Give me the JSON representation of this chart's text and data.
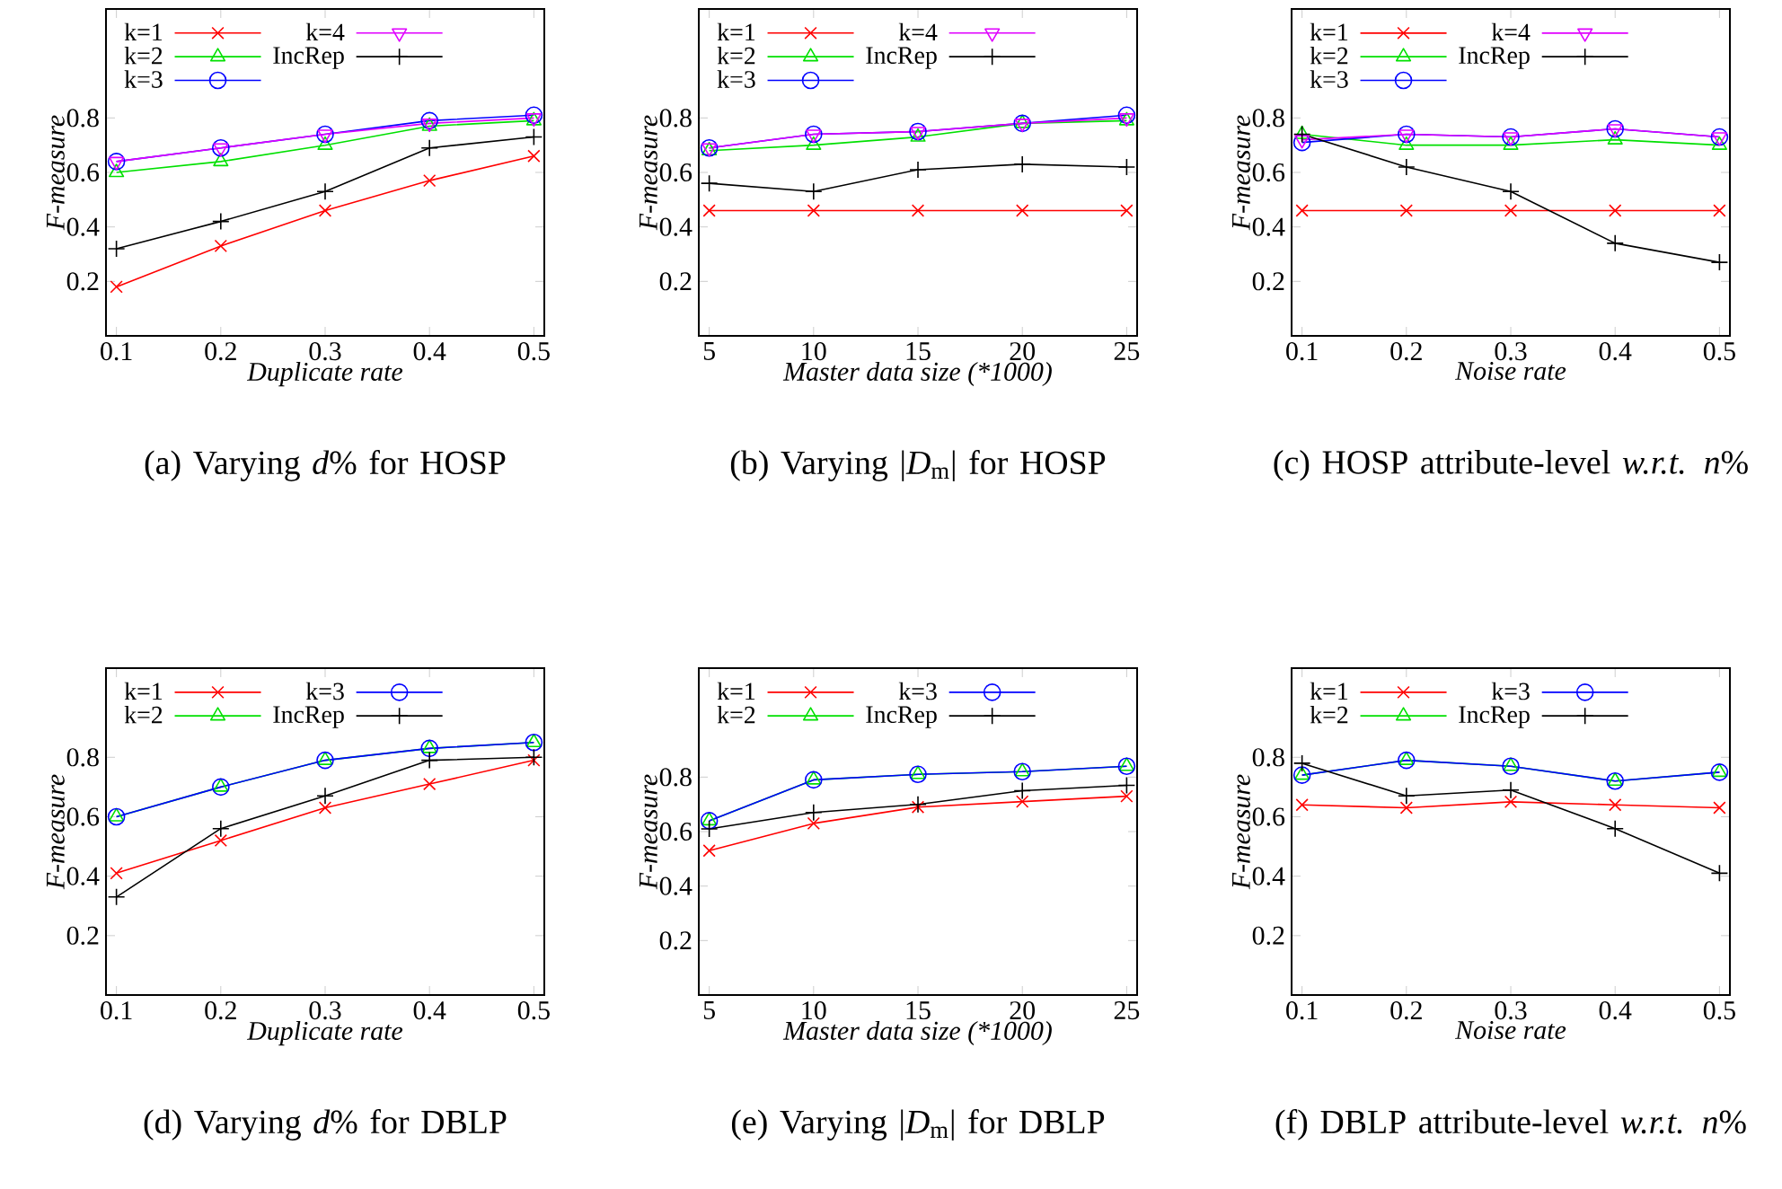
{
  "chart_data": [
    {
      "type": "line",
      "title": "(a) Varying *d*% for HOSP",
      "xlabel": "Duplicate rate",
      "ylabel": "F-measure",
      "x": [
        0.1,
        0.2,
        0.3,
        0.4,
        0.5
      ],
      "xlim": [
        0.09,
        0.51
      ],
      "xticks": [
        0.1,
        0.2,
        0.3,
        0.4,
        0.5
      ],
      "ylim": [
        0,
        1.2
      ],
      "yticks": [
        0.2,
        0.4,
        0.6,
        0.8
      ],
      "legend": "top left",
      "series": [
        {
          "name": "k=1",
          "color": "#ff0000",
          "marker": "cross",
          "values": [
            0.18,
            0.33,
            0.46,
            0.57,
            0.66
          ]
        },
        {
          "name": "k=2",
          "color": "#00e000",
          "marker": "triangle",
          "values": [
            0.6,
            0.64,
            0.7,
            0.77,
            0.79
          ]
        },
        {
          "name": "k=3",
          "color": "#0000ff",
          "marker": "circle",
          "values": [
            0.64,
            0.69,
            0.74,
            0.79,
            0.81
          ]
        },
        {
          "name": "k=4",
          "color": "#e000ff",
          "marker": "triangle_down",
          "values": [
            0.64,
            0.69,
            0.74,
            0.78,
            0.8
          ]
        },
        {
          "name": "IncRep",
          "color": "#000000",
          "marker": "plus",
          "values": [
            0.32,
            0.42,
            0.53,
            0.69,
            0.73
          ]
        }
      ]
    },
    {
      "type": "line",
      "title": "(b) Varying |*D*$_{m}$| for HOSP",
      "xlabel": "Master data size (*1000)",
      "ylabel": "F-measure",
      "x": [
        5,
        10,
        15,
        20,
        25
      ],
      "xlim": [
        4.5,
        25.5
      ],
      "xticks": [
        5,
        10,
        15,
        20,
        25
      ],
      "ylim": [
        0,
        1.2
      ],
      "yticks": [
        0.2,
        0.4,
        0.6,
        0.8
      ],
      "legend": "top left",
      "series": [
        {
          "name": "k=1",
          "color": "#ff0000",
          "marker": "cross",
          "values": [
            0.46,
            0.46,
            0.46,
            0.46,
            0.46
          ]
        },
        {
          "name": "k=2",
          "color": "#00e000",
          "marker": "triangle",
          "values": [
            0.68,
            0.7,
            0.73,
            0.78,
            0.79
          ]
        },
        {
          "name": "k=3",
          "color": "#0000ff",
          "marker": "circle",
          "values": [
            0.69,
            0.74,
            0.75,
            0.78,
            0.81
          ]
        },
        {
          "name": "k=4",
          "color": "#e000ff",
          "marker": "triangle_down",
          "values": [
            0.69,
            0.74,
            0.75,
            0.78,
            0.8
          ]
        },
        {
          "name": "IncRep",
          "color": "#000000",
          "marker": "plus",
          "values": [
            0.56,
            0.53,
            0.61,
            0.63,
            0.62
          ]
        }
      ]
    },
    {
      "type": "line",
      "title": "(c) HOSP attribute-level *w.r.t.* *n*%",
      "xlabel": "Noise rate",
      "ylabel": "F-measure",
      "x": [
        0.1,
        0.2,
        0.3,
        0.4,
        0.5
      ],
      "xlim": [
        0.09,
        0.51
      ],
      "xticks": [
        0.1,
        0.2,
        0.3,
        0.4,
        0.5
      ],
      "ylim": [
        0,
        1.2
      ],
      "yticks": [
        0.2,
        0.4,
        0.6,
        0.8
      ],
      "legend": "top left",
      "series": [
        {
          "name": "k=1",
          "color": "#ff0000",
          "marker": "cross",
          "values": [
            0.46,
            0.46,
            0.46,
            0.46,
            0.46
          ]
        },
        {
          "name": "k=2",
          "color": "#00e000",
          "marker": "triangle",
          "values": [
            0.74,
            0.7,
            0.7,
            0.72,
            0.7
          ]
        },
        {
          "name": "k=3",
          "color": "#0000ff",
          "marker": "circle",
          "values": [
            0.71,
            0.74,
            0.73,
            0.76,
            0.73
          ]
        },
        {
          "name": "k=4",
          "color": "#e000ff",
          "marker": "triangle_down",
          "values": [
            0.72,
            0.74,
            0.73,
            0.76,
            0.73
          ]
        },
        {
          "name": "IncRep",
          "color": "#000000",
          "marker": "plus",
          "values": [
            0.74,
            0.62,
            0.53,
            0.34,
            0.27
          ]
        }
      ]
    },
    {
      "type": "line",
      "title": "(d) Varying *d*% for DBLP",
      "xlabel": "Duplicate rate",
      "ylabel": "F-measure",
      "x": [
        0.1,
        0.2,
        0.3,
        0.4,
        0.5
      ],
      "xlim": [
        0.09,
        0.51
      ],
      "xticks": [
        0.1,
        0.2,
        0.3,
        0.4,
        0.5
      ],
      "ylim": [
        0,
        1.1
      ],
      "yticks": [
        0.2,
        0.4,
        0.6,
        0.8
      ],
      "legend": "top left",
      "series": [
        {
          "name": "k=1",
          "color": "#ff0000",
          "marker": "cross",
          "values": [
            0.41,
            0.52,
            0.63,
            0.71,
            0.79
          ]
        },
        {
          "name": "k=2",
          "color": "#00e000",
          "marker": "triangle",
          "values": [
            0.6,
            0.7,
            0.79,
            0.83,
            0.85
          ]
        },
        {
          "name": "k=3",
          "color": "#0000ff",
          "marker": "circle",
          "values": [
            0.6,
            0.7,
            0.79,
            0.83,
            0.85
          ]
        },
        {
          "name": "IncRep",
          "color": "#000000",
          "marker": "plus",
          "values": [
            0.33,
            0.56,
            0.67,
            0.79,
            0.8
          ]
        }
      ]
    },
    {
      "type": "line",
      "title": "(e) Varying |*D*$_{m}$| for DBLP",
      "xlabel": "Master data size (*1000)",
      "ylabel": "F-measure",
      "x": [
        5,
        10,
        15,
        20,
        25
      ],
      "xlim": [
        4.5,
        25.5
      ],
      "xticks": [
        5,
        10,
        15,
        20,
        25
      ],
      "ylim": [
        0,
        1.2
      ],
      "yticks": [
        0.2,
        0.4,
        0.6,
        0.8
      ],
      "legend": "top left",
      "series": [
        {
          "name": "k=1",
          "color": "#ff0000",
          "marker": "cross",
          "values": [
            0.53,
            0.63,
            0.69,
            0.71,
            0.73
          ]
        },
        {
          "name": "k=2",
          "color": "#00e000",
          "marker": "triangle",
          "values": [
            0.64,
            0.79,
            0.81,
            0.82,
            0.84
          ]
        },
        {
          "name": "k=3",
          "color": "#0000ff",
          "marker": "circle",
          "values": [
            0.64,
            0.79,
            0.81,
            0.82,
            0.84
          ]
        },
        {
          "name": "IncRep",
          "color": "#000000",
          "marker": "plus",
          "values": [
            0.61,
            0.67,
            0.7,
            0.75,
            0.77
          ]
        }
      ]
    },
    {
      "type": "line",
      "title": "(f) DBLP attribute-level *w.r.t.* *n*%",
      "xlabel": "Noise rate",
      "ylabel": "F-measure",
      "x": [
        0.1,
        0.2,
        0.3,
        0.4,
        0.5
      ],
      "xlim": [
        0.09,
        0.51
      ],
      "xticks": [
        0.1,
        0.2,
        0.3,
        0.4,
        0.5
      ],
      "ylim": [
        0,
        1.1
      ],
      "yticks": [
        0.2,
        0.4,
        0.6,
        0.8
      ],
      "legend": "top left",
      "series": [
        {
          "name": "k=1",
          "color": "#ff0000",
          "marker": "cross",
          "values": [
            0.64,
            0.63,
            0.65,
            0.64,
            0.63
          ]
        },
        {
          "name": "k=2",
          "color": "#00e000",
          "marker": "triangle",
          "values": [
            0.74,
            0.79,
            0.77,
            0.72,
            0.75
          ]
        },
        {
          "name": "k=3",
          "color": "#0000ff",
          "marker": "circle",
          "values": [
            0.74,
            0.79,
            0.77,
            0.72,
            0.75
          ]
        },
        {
          "name": "IncRep",
          "color": "#000000",
          "marker": "plus",
          "values": [
            0.78,
            0.67,
            0.69,
            0.56,
            0.41
          ]
        }
      ]
    }
  ]
}
